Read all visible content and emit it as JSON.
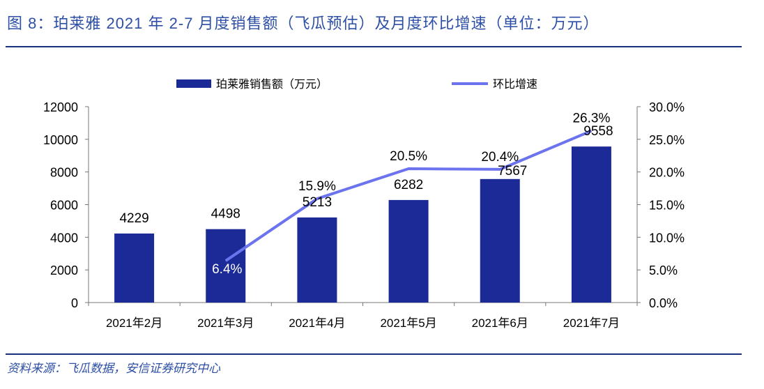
{
  "title": "图 8：珀莱雅 2021 年 2-7 月度销售额（飞瓜预估）及月度环比增速（单位：万元）",
  "source": "资料来源：飞瓜数据，安信证券研究中心",
  "chart_data": {
    "type": "bar+line",
    "categories": [
      "2021年2月",
      "2021年3月",
      "2021年4月",
      "2021年5月",
      "2021年6月",
      "2021年7月"
    ],
    "series": [
      {
        "name": "珀莱雅销售额（万元）",
        "type": "bar",
        "axis": "left",
        "values": [
          4229,
          4498,
          5213,
          6282,
          7567,
          9558
        ],
        "labels": [
          "4229",
          "4498",
          "5213",
          "6282",
          "7567",
          "9558"
        ]
      },
      {
        "name": "环比增速",
        "type": "line",
        "axis": "right",
        "values": [
          null,
          6.4,
          15.9,
          20.5,
          20.4,
          26.3
        ],
        "labels": [
          "",
          "6.4%",
          "15.9%",
          "20.5%",
          "20.4%",
          "26.3%"
        ]
      }
    ],
    "left_axis": {
      "ylim": [
        0,
        12000
      ],
      "ticks": [
        "0",
        "2000",
        "4000",
        "6000",
        "8000",
        "10000",
        "12000"
      ]
    },
    "right_axis": {
      "ylim": [
        0,
        30
      ],
      "ticks": [
        "0.0%",
        "5.0%",
        "10.0%",
        "15.0%",
        "20.0%",
        "25.0%",
        "30.0%"
      ]
    },
    "grid": false,
    "legend": "top",
    "colors": {
      "bar": "#1b2a96",
      "line": "#6b73ee"
    }
  }
}
